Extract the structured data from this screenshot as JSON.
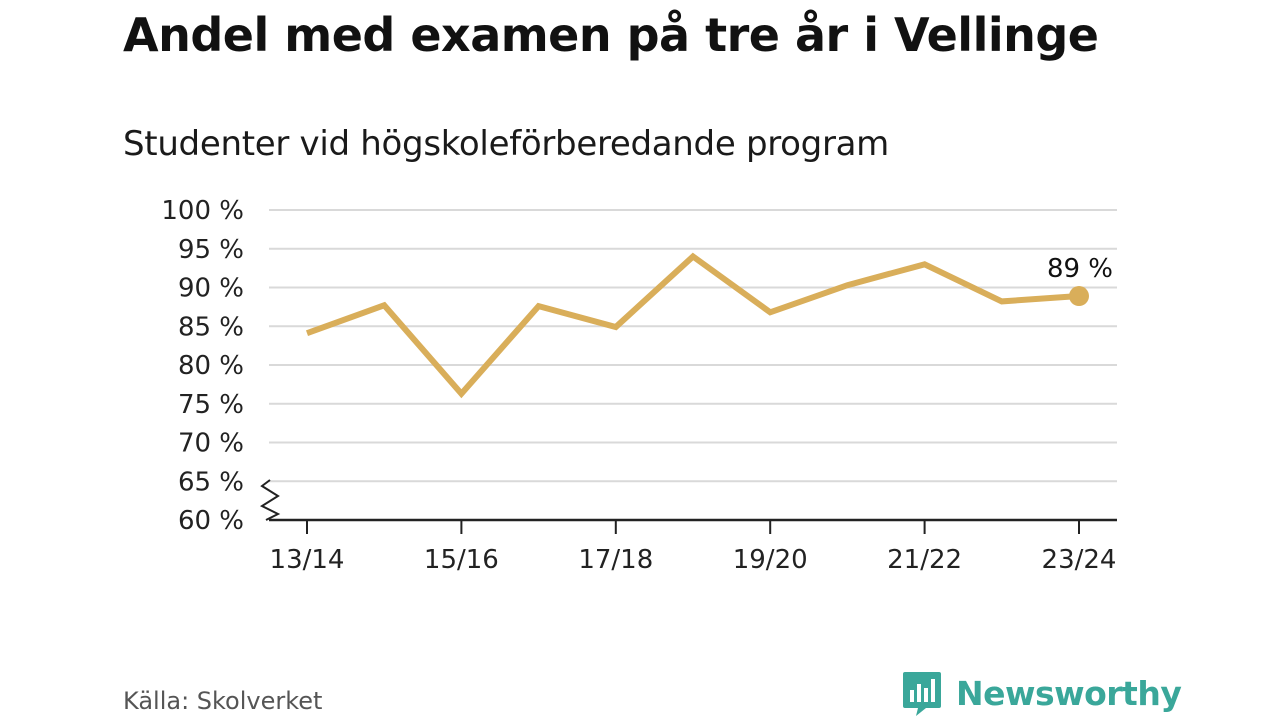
{
  "header": {
    "title": "Andel med examen på tre år i Vellinge",
    "subtitle": "Studenter vid högskoleförberedande program"
  },
  "footer": {
    "source": "Källa: Skolverket",
    "brand_name": "Newsworthy",
    "brand_icon": "newsworthy-logo-icon"
  },
  "colors": {
    "line": "#d9ae5a",
    "grid": "#d9d9d9",
    "axis": "#222222",
    "brand": "#3aa79a"
  },
  "chart_data": {
    "type": "line",
    "title": "Andel med examen på tre år i Vellinge",
    "subtitle": "Studenter vid högskoleförberedande program",
    "xlabel": "",
    "ylabel": "",
    "x": [
      "13/14",
      "14/15",
      "15/16",
      "16/17",
      "17/18",
      "18/19",
      "19/20",
      "20/21",
      "21/22",
      "22/23",
      "23/24"
    ],
    "x_tick_labels": [
      "13/14",
      "15/16",
      "17/18",
      "19/20",
      "21/22",
      "23/24"
    ],
    "y_ticks": [
      60,
      65,
      70,
      75,
      80,
      85,
      90,
      95,
      100
    ],
    "y_tick_labels": [
      "60 %",
      "65 %",
      "70 %",
      "75 %",
      "80 %",
      "85 %",
      "90 %",
      "95 %",
      "100 %"
    ],
    "ylim": [
      60,
      100
    ],
    "y_axis_break": true,
    "grid": true,
    "series": [
      {
        "values": [
          84.1,
          87.7,
          76.3,
          87.6,
          84.9,
          94.0,
          86.8,
          90.3,
          93.0,
          88.2,
          88.9
        ]
      }
    ],
    "end_label": "89 %"
  }
}
